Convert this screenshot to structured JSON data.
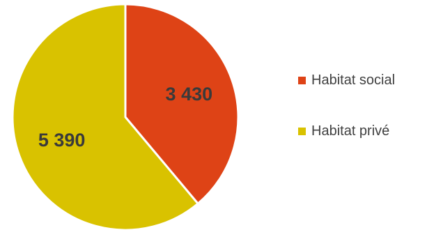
{
  "chart_data": {
    "type": "pie",
    "title": "",
    "slices": [
      {
        "label": "Habitat social",
        "value": 3430,
        "value_label": "3 430",
        "color": "#de4316"
      },
      {
        "label": "Habitat privé",
        "value": 5390,
        "value_label": "5 390",
        "color": "#d9c200"
      }
    ],
    "start_angle_deg": 0,
    "direction": "clockwise",
    "legend_position": "right"
  }
}
